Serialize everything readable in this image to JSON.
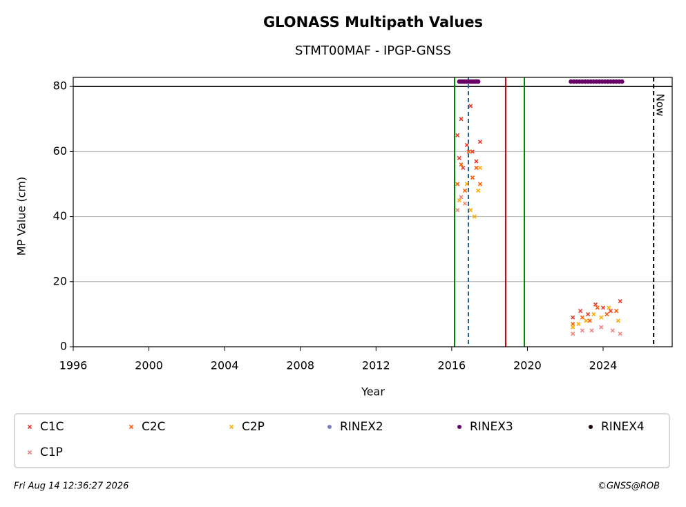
{
  "chart_data": {
    "type": "scatter",
    "title": "GLONASS Multipath Values",
    "subtitle": "STMT00MAF - IPGP-GNSS",
    "x_label": "Year",
    "y_label": "MP Value (cm)",
    "xlim": [
      1996,
      2027.65
    ],
    "ylim": [
      0,
      82.8
    ],
    "xticks": [
      1996,
      2000,
      2004,
      2008,
      2012,
      2016,
      2020,
      2024
    ],
    "yticks": [
      0,
      20,
      40,
      60,
      80
    ],
    "grid": true,
    "legend": "bottom",
    "hlines": [
      {
        "y": 80,
        "color": "#000000"
      }
    ],
    "vlines": [
      {
        "x": 2016.15,
        "color": "#008000",
        "style": "solid"
      },
      {
        "x": 2016.88,
        "color": "#1f5fa0",
        "style": "dashed"
      },
      {
        "x": 2018.85,
        "color": "#cc0000",
        "style": "solid"
      },
      {
        "x": 2019.84,
        "color": "#008000",
        "style": "solid"
      },
      {
        "x": 2026.67,
        "color": "#000000",
        "style": "dashed",
        "label": "Now"
      }
    ],
    "series": [
      {
        "name": "C1C",
        "color": "#e8392a",
        "marker": "x",
        "x": [
          2016.3,
          2016.4,
          2016.5,
          2016.6,
          2016.8,
          2017.0,
          2017.1,
          2017.3,
          2017.5,
          2022.4,
          2022.8,
          2023.2,
          2023.6,
          2024.0,
          2024.4,
          2024.9
        ],
        "values": [
          65,
          58,
          70,
          55,
          62,
          74,
          60,
          57,
          63,
          9,
          11,
          10,
          13,
          12,
          11,
          14
        ]
      },
      {
        "name": "C2C",
        "color": "#ff5a00",
        "marker": "x",
        "x": [
          2016.3,
          2016.5,
          2016.7,
          2016.9,
          2017.1,
          2017.3,
          2017.5,
          2022.4,
          2022.9,
          2023.3,
          2023.7,
          2024.2,
          2024.7
        ],
        "values": [
          50,
          56,
          48,
          60,
          52,
          55,
          50,
          7,
          9,
          8,
          12,
          10,
          11
        ]
      },
      {
        "name": "C2P",
        "color": "#ffaa00",
        "marker": "x",
        "x": [
          2016.4,
          2016.8,
          2017.0,
          2017.2,
          2017.4,
          2017.5,
          2022.4,
          2022.7,
          2023.1,
          2023.5,
          2023.9,
          2024.3,
          2024.8
        ],
        "values": [
          45,
          50,
          42,
          40,
          48,
          55,
          6,
          7,
          8,
          10,
          9,
          12,
          8
        ]
      },
      {
        "name": "RINEX2",
        "color": "#7f7fc0",
        "marker": "o",
        "x": [],
        "values": []
      },
      {
        "name": "RINEX3",
        "color": "#660066",
        "marker": "o",
        "x": [
          2016.4,
          2016.5,
          2016.6,
          2016.7,
          2016.8,
          2016.9,
          2017.0,
          2017.1,
          2017.2,
          2017.3,
          2017.4,
          2022.3,
          2022.45,
          2022.6,
          2022.75,
          2022.9,
          2023.05,
          2023.2,
          2023.35,
          2023.5,
          2023.65,
          2023.8,
          2023.95,
          2024.1,
          2024.25,
          2024.4,
          2024.55,
          2024.7,
          2024.85,
          2025.0
        ],
        "values": [
          81.5,
          81.5,
          81.5,
          81.5,
          81.5,
          81.5,
          81.5,
          81.5,
          81.5,
          81.5,
          81.5,
          81.5,
          81.5,
          81.5,
          81.5,
          81.5,
          81.5,
          81.5,
          81.5,
          81.5,
          81.5,
          81.5,
          81.5,
          81.5,
          81.5,
          81.5,
          81.5,
          81.5,
          81.5,
          81.5
        ]
      },
      {
        "name": "RINEX4",
        "color": "#1a0010",
        "marker": "o",
        "x": [],
        "values": []
      },
      {
        "name": "C1P",
        "color": "#f08080",
        "marker": "x",
        "x": [
          2016.3,
          2016.5,
          2016.7,
          2022.4,
          2022.9,
          2023.4,
          2023.9,
          2024.5,
          2024.9
        ],
        "values": [
          42,
          46,
          44,
          4,
          5,
          5,
          6,
          5,
          4
        ]
      }
    ],
    "timestamp": "Fri Aug 14 12:36:27 2026",
    "credit": "©GNSS@ROB"
  }
}
